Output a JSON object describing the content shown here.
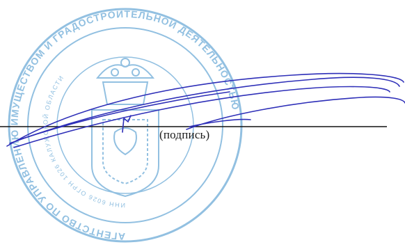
{
  "signature_block": {
    "caption": "(подпись)"
  },
  "stamp": {
    "color": "#7fb6dc",
    "outer_ring_text": "АГЕНТСТВО ПО УПРАВЛЕНИЮ ИМУЩЕСТВОМ И ГРАДОСТРОИТЕЛЬНОЙ ДЕЯТЕЛЬНОСТЬЮ",
    "inner_ring_text": "ИНН 6026 ОГРН 1026 КАЛУЖСКОЙ ОБЛАСТИ",
    "emblem": "crown-coat-of-arms"
  },
  "signature": {
    "ink_color": "#2e2fb8"
  },
  "line": {
    "color": "#111111"
  }
}
